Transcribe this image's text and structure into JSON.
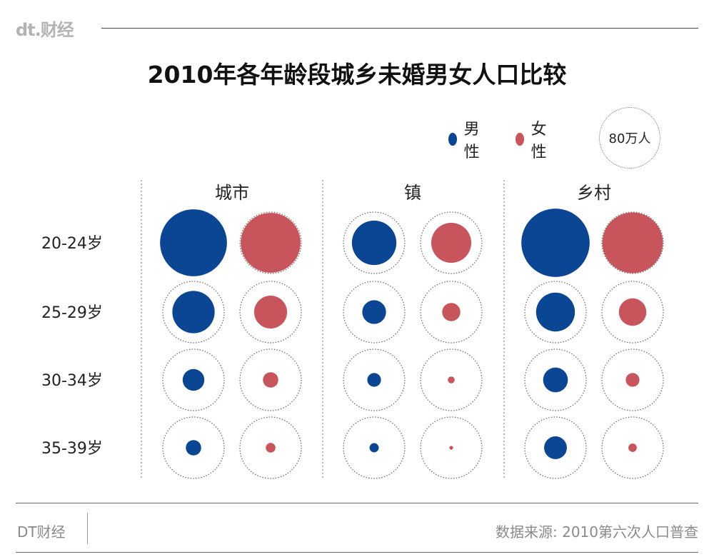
{
  "brand": {
    "logo": "dt.财经",
    "footer_logo": "DT财经"
  },
  "title": "2010年各年龄段城乡未婚男女人口比较",
  "legend": {
    "male": "男性",
    "female": "女性",
    "scale_label": "80万人",
    "male_color": "#0b4694",
    "female_color": "#c8555b"
  },
  "source": "数据来源: 2010第六次人口普查",
  "chart_data": {
    "type": "bubble-grid",
    "title": "2010年各年龄段城乡未婚男女人口比较",
    "groups": [
      "城市",
      "镇",
      "乡村"
    ],
    "age_groups": [
      "20-24岁",
      "25-29岁",
      "30-34岁",
      "35-39岁"
    ],
    "series": [
      {
        "name": "男性",
        "color": "#0b4694"
      },
      {
        "name": "女性",
        "color": "#c8555b"
      }
    ],
    "reference": {
      "label": "80万人",
      "value": 80
    },
    "values": {
      "城市": {
        "男性": [
          95,
          38,
          10,
          5
        ],
        "女性": [
          76,
          23,
          5,
          2
        ]
      },
      "镇": {
        "男性": [
          42,
          12,
          4,
          1.8
        ],
        "女性": [
          34,
          7,
          1,
          0.3
        ]
      },
      "乡村": {
        "男性": [
          99,
          32,
          13,
          11
        ],
        "女性": [
          78,
          16,
          4,
          1.5
        ]
      }
    }
  }
}
